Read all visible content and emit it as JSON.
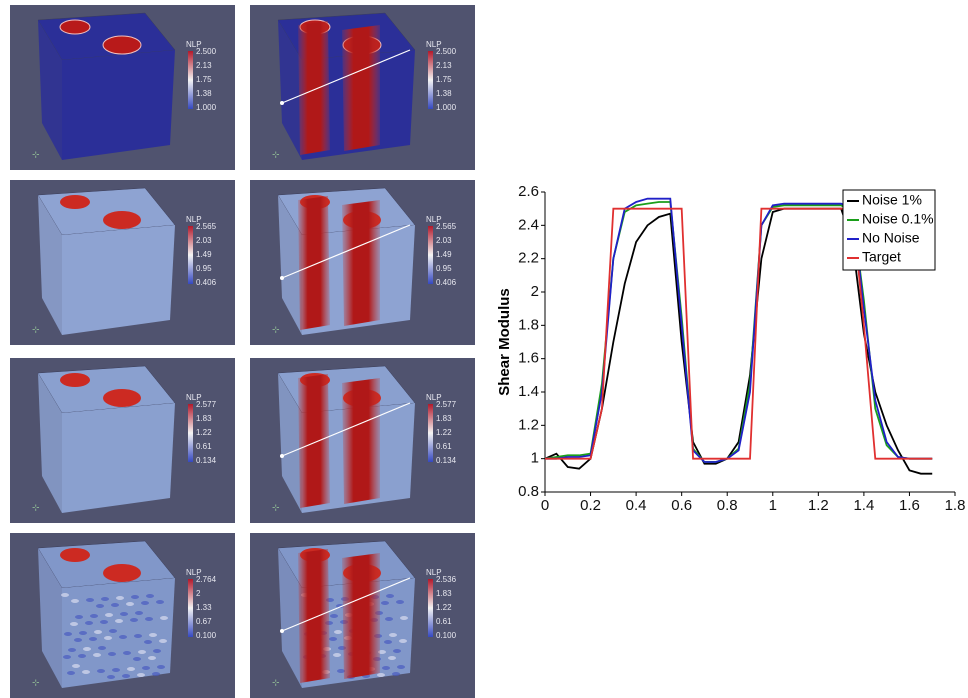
{
  "panels": [
    {
      "colorbar_title": "NLP",
      "ticks": [
        "2.500",
        "2.13",
        "1.75",
        "1.38",
        "1.000"
      ]
    },
    {
      "colorbar_title": "NLP",
      "ticks": [
        "2.500",
        "2.13",
        "1.75",
        "1.38",
        "1.000"
      ]
    },
    {
      "colorbar_title": "NLP",
      "ticks": [
        "2.565",
        "2.03",
        "1.49",
        "0.95",
        "0.406"
      ]
    },
    {
      "colorbar_title": "NLP",
      "ticks": [
        "2.565",
        "2.03",
        "1.49",
        "0.95",
        "0.406"
      ]
    },
    {
      "colorbar_title": "NLP",
      "ticks": [
        "2.577",
        "1.83",
        "1.22",
        "0.61",
        "0.134"
      ]
    },
    {
      "colorbar_title": "NLP",
      "ticks": [
        "2.577",
        "1.83",
        "1.22",
        "0.61",
        "0.134"
      ]
    },
    {
      "colorbar_title": "NLP",
      "ticks": [
        "2.764",
        "2",
        "1.33",
        "0.67",
        "0.100"
      ]
    },
    {
      "colorbar_title": "NLP",
      "ticks": [
        "2.536",
        "1.83",
        "1.22",
        "0.61",
        "0.100"
      ]
    }
  ],
  "chart_data": {
    "type": "line",
    "y_label": "Shear Modulus",
    "x": [
      0,
      0.05,
      0.1,
      0.15,
      0.2,
      0.25,
      0.3,
      0.35,
      0.4,
      0.45,
      0.5,
      0.55,
      0.6,
      0.65,
      0.7,
      0.75,
      0.8,
      0.85,
      0.9,
      0.95,
      1,
      1.05,
      1.1,
      1.15,
      1.2,
      1.25,
      1.3,
      1.35,
      1.4,
      1.45,
      1.5,
      1.55,
      1.6,
      1.65,
      1.7
    ],
    "series": [
      {
        "name": "Noise 1%",
        "color": "#000000",
        "values": [
          1,
          1.03,
          0.95,
          0.94,
          1.0,
          1.3,
          1.7,
          2.05,
          2.3,
          2.4,
          2.45,
          2.47,
          1.7,
          1.1,
          0.97,
          0.97,
          1.0,
          1.1,
          1.5,
          2.2,
          2.48,
          2.5,
          2.5,
          2.5,
          2.5,
          2.5,
          2.5,
          2.3,
          1.75,
          1.4,
          1.2,
          1.05,
          0.93,
          0.91,
          0.91
        ]
      },
      {
        "name": "Noise 0.1%",
        "color": "#1a9e1a",
        "values": [
          1,
          1.01,
          1.02,
          1.02,
          1.03,
          1.45,
          2.2,
          2.48,
          2.52,
          2.53,
          2.54,
          2.54,
          1.85,
          1.06,
          0.98,
          0.98,
          1.0,
          1.06,
          1.45,
          2.4,
          2.51,
          2.52,
          2.52,
          2.52,
          2.52,
          2.52,
          2.52,
          2.48,
          1.95,
          1.3,
          1.08,
          1.01,
          1.0,
          1.0,
          1.0
        ]
      },
      {
        "name": "No Noise",
        "color": "#2020c8",
        "values": [
          1,
          1,
          1.01,
          1.01,
          1.02,
          1.4,
          2.2,
          2.5,
          2.54,
          2.56,
          2.56,
          2.56,
          1.8,
          1.05,
          0.98,
          0.98,
          1.0,
          1.05,
          1.4,
          2.4,
          2.52,
          2.53,
          2.53,
          2.53,
          2.53,
          2.53,
          2.53,
          2.5,
          1.9,
          1.35,
          1.1,
          1.01,
          1.0,
          1.0,
          1.0
        ]
      },
      {
        "name": "Target",
        "color": "#e03030",
        "values": [
          1,
          1,
          1,
          1,
          1,
          1.3,
          2.5,
          2.5,
          2.5,
          2.5,
          2.5,
          2.5,
          2.5,
          1,
          1,
          1,
          1,
          1,
          1,
          2.5,
          2.5,
          2.5,
          2.5,
          2.5,
          2.5,
          2.5,
          2.5,
          2.5,
          1.8,
          1,
          1,
          1,
          1,
          1,
          1
        ]
      }
    ],
    "xlim": [
      0,
      1.8
    ],
    "xticks": [
      0,
      0.2,
      0.4,
      0.6,
      0.8,
      1,
      1.2,
      1.4,
      1.6,
      1.8
    ],
    "ylim": [
      0.8,
      2.6
    ],
    "yticks": [
      0.8,
      1,
      1.2,
      1.4,
      1.6,
      1.8,
      2,
      2.2,
      2.4,
      2.6
    ],
    "legend": "top-right"
  }
}
